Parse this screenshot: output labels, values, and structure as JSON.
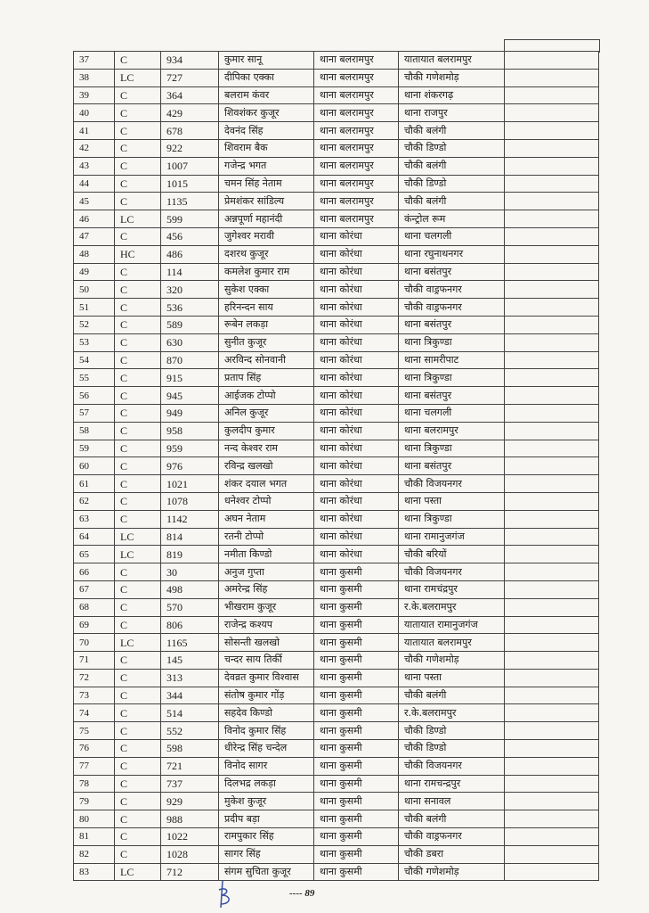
{
  "table": {
    "rows": [
      [
        "37",
        "C",
        "934",
        "कुमार सानू",
        "थाना बलरामपुर",
        "यातायात बलरामपुर"
      ],
      [
        "38",
        "LC",
        "727",
        "दीपिका एक्का",
        "थाना बलरामपुर",
        "चौकी गणेशमोड़"
      ],
      [
        "39",
        "C",
        "364",
        "बलराम कंवर",
        "थाना बलरामपुर",
        "थाना शंकरगढ़"
      ],
      [
        "40",
        "C",
        "429",
        "शिवशंकर कुजूर",
        "थाना बलरामपुर",
        "थाना राजपुर"
      ],
      [
        "41",
        "C",
        "678",
        "देवनंद सिंह",
        "थाना बलरामपुर",
        "चौकी बलंगी"
      ],
      [
        "42",
        "C",
        "922",
        "शिवराम बैक",
        "थाना बलरामपुर",
        "चौकी डिण्डो"
      ],
      [
        "43",
        "C",
        "1007",
        "गजेन्द्र भगत",
        "थाना बलरामपुर",
        "चौकी बलंगी"
      ],
      [
        "44",
        "C",
        "1015",
        "चमन सिंह नेताम",
        "थाना बलरामपुर",
        "चौकी डिण्डो"
      ],
      [
        "45",
        "C",
        "1135",
        "प्रेमशंकर सांडिल्य",
        "थाना बलरामपुर",
        "चौकी बलंगी"
      ],
      [
        "46",
        "LC",
        "599",
        "अन्नपूर्णा महानंदी",
        "थाना बलरामपुर",
        "कंन्ट्रोल रूम"
      ],
      [
        "47",
        "C",
        "456",
        "जुगेश्वर मरावी",
        "थाना कोरंधा",
        "थाना चलगली"
      ],
      [
        "48",
        "HC",
        "486",
        "दशरथ कुजूर",
        "थाना कोरंधा",
        "थाना रघुनाथनगर"
      ],
      [
        "49",
        "C",
        "114",
        "कमलेश कुमार राम",
        "थाना कोरंधा",
        "थाना बसंतपुर"
      ],
      [
        "50",
        "C",
        "320",
        "सुकेश एक्का",
        "थाना कोरंधा",
        "चौकी वाड्रफनगर"
      ],
      [
        "51",
        "C",
        "536",
        "हरिनन्दन साय",
        "थाना कोरंधा",
        "चौकी वाड्रफनगर"
      ],
      [
        "52",
        "C",
        "589",
        "रूबेन लकड़ा",
        "थाना कोरंधा",
        "थाना बसंतपुर"
      ],
      [
        "53",
        "C",
        "630",
        "सुनीत कुजूर",
        "थाना कोरंधा",
        "थाना त्रिकुण्डा"
      ],
      [
        "54",
        "C",
        "870",
        "अरविन्द सोनवानी",
        "थाना कोरंधा",
        "थाना सामरीपाट"
      ],
      [
        "55",
        "C",
        "915",
        "प्रताप सिंह",
        "थाना कोरंधा",
        "थाना त्रिकुण्डा"
      ],
      [
        "56",
        "C",
        "945",
        "आईजक टोप्पो",
        "थाना कोरंधा",
        "थाना बसंतपुर"
      ],
      [
        "57",
        "C",
        "949",
        "अनिल कुजूर",
        "थाना कोरंधा",
        "थाना चलगली"
      ],
      [
        "58",
        "C",
        "958",
        "कुलदीप कुमार",
        "थाना कोरंधा",
        "थाना बलरामपुर"
      ],
      [
        "59",
        "C",
        "959",
        "नन्द केश्वर राम",
        "थाना कोरंधा",
        "थाना त्रिकुण्डा"
      ],
      [
        "60",
        "C",
        "976",
        "रविन्द्र खलखो",
        "थाना कोरंधा",
        "थाना बसंतपुर"
      ],
      [
        "61",
        "C",
        "1021",
        "शंकर दयाल भगत",
        "थाना कोरंधा",
        "चौकी विजयनगर"
      ],
      [
        "62",
        "C",
        "1078",
        "धनेश्वर टोप्पो",
        "थाना कोरंधा",
        "थाना पस्ता"
      ],
      [
        "63",
        "C",
        "1142",
        "अघन नेताम",
        "थाना कोरंधा",
        "थाना त्रिकुण्डा"
      ],
      [
        "64",
        "LC",
        "814",
        "रतनी टोप्पो",
        "थाना कोरंधा",
        "थाना रामानुजगंज"
      ],
      [
        "65",
        "LC",
        "819",
        "नमीता किण्डो",
        "थाना कोरंधा",
        "चौकी बरियों"
      ],
      [
        "66",
        "C",
        "30",
        "अनुज गुप्ता",
        "थाना कुसमी",
        "चौकी विजयनगर"
      ],
      [
        "67",
        "C",
        "498",
        "अमरेन्द्र सिंह",
        "थाना कुसमी",
        "थाना रामचंद्रपुर"
      ],
      [
        "68",
        "C",
        "570",
        "भीखराम कुजूर",
        "थाना कुसमी",
        "र.के.बलरामपुर"
      ],
      [
        "69",
        "C",
        "806",
        "राजेन्द्र कश्यप",
        "थाना कुसमी",
        "यातायात रामानुजगंज"
      ],
      [
        "70",
        "LC",
        "1165",
        "सोसन्ती खलखो",
        "थाना कुसमी",
        "यातायात बलरामपुर"
      ],
      [
        "71",
        "C",
        "145",
        "चन्दर साय तिर्की",
        "थाना कुसमी",
        "चौकी गणेशमोड़"
      ],
      [
        "72",
        "C",
        "313",
        "देवव्रत कुमार विश्वास",
        "थाना कुसमी",
        "थाना पस्ता"
      ],
      [
        "73",
        "C",
        "344",
        "संतोष कुमार गोंड़",
        "थाना कुसमी",
        "चौकी बलंगी"
      ],
      [
        "74",
        "C",
        "514",
        "सहदेव किण्डो",
        "थाना कुसमी",
        "र.के.बलरामपुर"
      ],
      [
        "75",
        "C",
        "552",
        "विनोद कुमार सिंह",
        "थाना कुसमी",
        "चौकी डिण्डो"
      ],
      [
        "76",
        "C",
        "598",
        "धीरेन्द्र सिंह चन्देल",
        "थाना कुसमी",
        "चौकी डिण्डो"
      ],
      [
        "77",
        "C",
        "721",
        "विनोद सागर",
        "थाना कुसमी",
        "चौकी विजयनगर"
      ],
      [
        "78",
        "C",
        "737",
        "दिलभद्र लकड़ा",
        "थाना कुसमी",
        "थाना रामचन्द्रपुर"
      ],
      [
        "79",
        "C",
        "929",
        "मुकेश कुजूर",
        "थाना कुसमी",
        "थाना सनावल"
      ],
      [
        "80",
        "C",
        "988",
        "प्रदीप बड़ा",
        "थाना कुसमी",
        "चौकी बलंगी"
      ],
      [
        "81",
        "C",
        "1022",
        "रामपुकार सिंह",
        "थाना कुसमी",
        "चौकी वाड्रफनगर"
      ],
      [
        "82",
        "C",
        "1028",
        "सागर सिंह",
        "थाना कुसमी",
        "चौकी डबरा"
      ],
      [
        "83",
        "LC",
        "712",
        "संगम सुचिता कुजूर",
        "थाना कुसमी",
        "चौकी गणेशमोड़"
      ]
    ]
  },
  "footer": {
    "page_number": "---- 89"
  }
}
